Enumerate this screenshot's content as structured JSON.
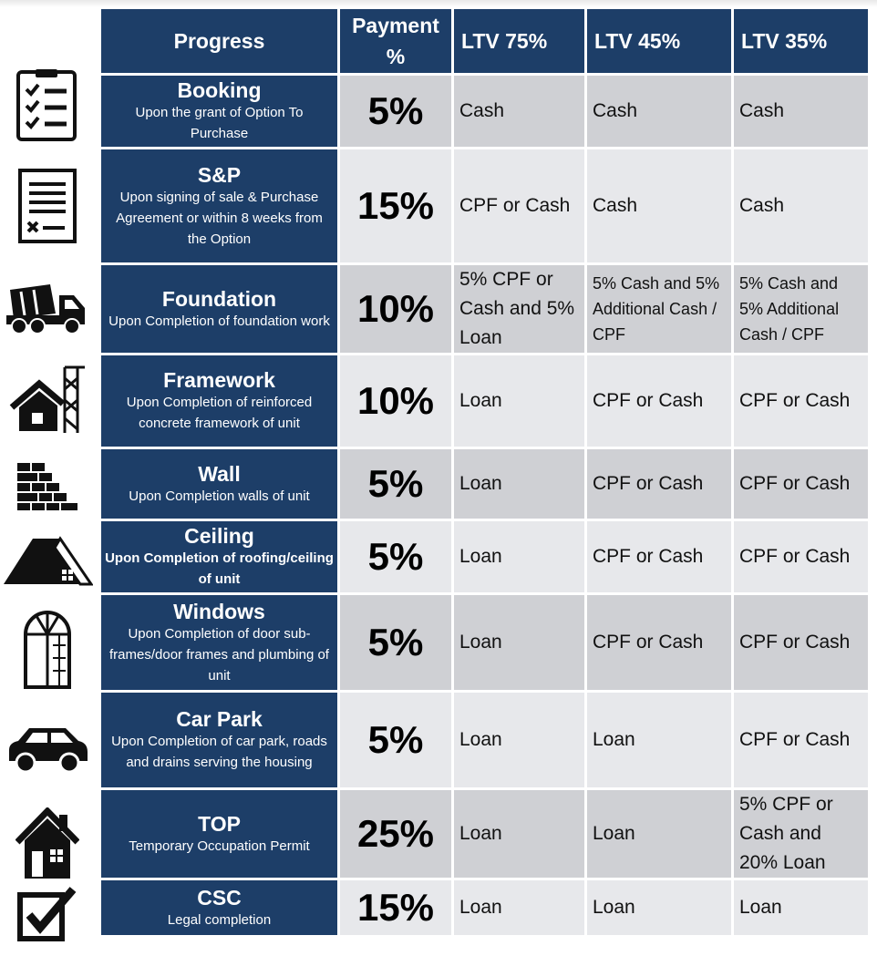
{
  "header": {
    "progress": "Progress",
    "payment": "Payment %",
    "ltv75": "LTV 75%",
    "ltv45": "LTV 45%",
    "ltv35": "LTV 35%"
  },
  "rows": [
    {
      "title": "Booking",
      "desc": "Upon the grant of Option To Purchase",
      "pct": "5%",
      "ltv75": "Cash",
      "ltv45": "Cash",
      "ltv35": "Cash",
      "icon": "checklist-icon"
    },
    {
      "title": "S&P",
      "desc": "Upon signing of sale & Purchase Agreement or within 8 weeks from the Option",
      "pct": "15%",
      "ltv75": "CPF or Cash",
      "ltv45": "Cash",
      "ltv35": "Cash",
      "icon": "contract-icon"
    },
    {
      "title": "Foundation",
      "desc": "Upon Completion of foundation work",
      "pct": "10%",
      "ltv75": "5% CPF or Cash and 5% Loan",
      "ltv45": "5% Cash and 5% Additional Cash / CPF",
      "ltv35": "5% Cash and 5% Additional Cash / CPF",
      "icon": "cement-truck-icon"
    },
    {
      "title": "Framework",
      "desc": "Upon Completion of reinforced concrete framework of unit",
      "pct": "10%",
      "ltv75": "Loan",
      "ltv45": "CPF or Cash",
      "ltv35": "CPF or Cash",
      "icon": "house-crane-icon"
    },
    {
      "title": "Wall",
      "desc": "Upon Completion walls of unit",
      "pct": "5%",
      "ltv75": "Loan",
      "ltv45": "CPF or Cash",
      "ltv35": "CPF or Cash",
      "icon": "brick-wall-icon"
    },
    {
      "title": "Ceiling",
      "desc": "Upon Completion of roofing/ceiling of unit",
      "pct": "5%",
      "ltv75": "Loan",
      "ltv45": "CPF or Cash",
      "ltv35": "CPF or Cash",
      "icon": "roof-icon"
    },
    {
      "title": "Windows",
      "desc": "Upon Completion of door sub-frames/door frames and plumbing of unit",
      "pct": "5%",
      "ltv75": "Loan",
      "ltv45": "CPF or Cash",
      "ltv35": "CPF or Cash",
      "icon": "window-icon"
    },
    {
      "title": "Car Park",
      "desc": "Upon Completion of car park, roads and drains serving the housing",
      "pct": "5%",
      "ltv75": "Loan",
      "ltv45": "Loan",
      "ltv35": "CPF or Cash",
      "icon": "car-icon"
    },
    {
      "title": "TOP",
      "desc": "Temporary Occupation Permit",
      "pct": "25%",
      "ltv75": "Loan",
      "ltv45": "Loan",
      "ltv35": "5% CPF or Cash and 20% Loan",
      "icon": "house-icon"
    },
    {
      "title": "CSC",
      "desc": "Legal completion",
      "pct": "15%",
      "ltv75": "Loan",
      "ltv45": "Loan",
      "ltv35": "Loan",
      "icon": "checkbox-icon"
    }
  ]
}
